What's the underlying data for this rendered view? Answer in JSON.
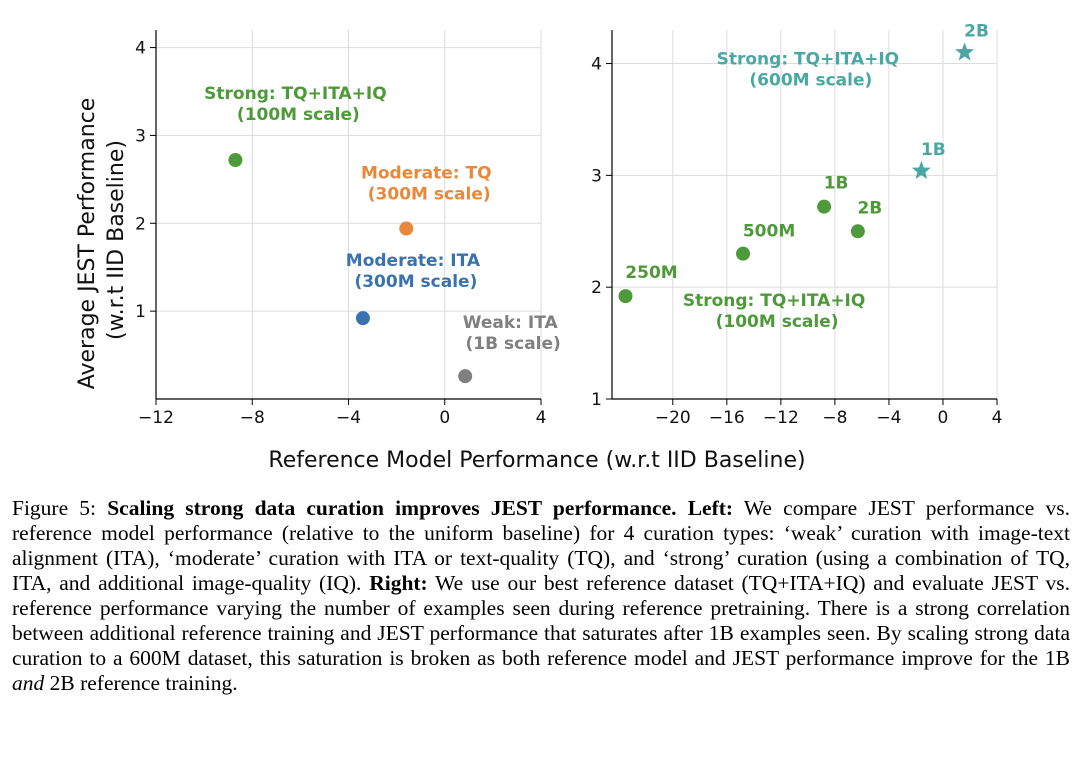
{
  "chart_data": [
    {
      "type": "scatter",
      "xlabel": "Reference Model Performance (w.r.t IID Baseline)",
      "ylabel": "Average JEST Performance\n(w.r.t IID Baseline)",
      "xlim": [
        -12,
        4
      ],
      "ylim": [
        0,
        4.2
      ],
      "xticks": [
        -12,
        -8,
        -4,
        0,
        4
      ],
      "yticks": [
        1,
        2,
        3,
        4
      ],
      "grid": true,
      "points": [
        {
          "name": "strong",
          "x": -8.7,
          "y": 2.72,
          "color": "#4e9a3a",
          "marker": "circle",
          "label": "Strong: TQ+ITA+IQ\n (100M scale)"
        },
        {
          "name": "moderate-tq",
          "x": -1.6,
          "y": 1.94,
          "color": "#e8883a",
          "marker": "circle",
          "label": "Moderate: TQ\n (300M scale)"
        },
        {
          "name": "moderate-ita",
          "x": -3.4,
          "y": 0.92,
          "color": "#3a72b0",
          "marker": "circle",
          "label": "Moderate: ITA\n (300M scale)"
        },
        {
          "name": "weak",
          "x": 0.85,
          "y": 0.26,
          "color": "#808080",
          "marker": "circle",
          "label": "Weak: ITA\n (1B scale)"
        }
      ]
    },
    {
      "type": "scatter",
      "xlim": [
        -24.5,
        4
      ],
      "ylim": [
        1,
        4.3
      ],
      "xticks": [
        -20,
        -16,
        -12,
        -8,
        -4,
        0,
        4
      ],
      "yticks": [
        1,
        2,
        3,
        4
      ],
      "grid": true,
      "series": [
        {
          "name": "Strong: TQ+ITA+IQ\n (100M scale)",
          "color": "#4e9a3a",
          "marker": "circle",
          "points": [
            {
              "label": "250M",
              "x": -23.5,
              "y": 1.92
            },
            {
              "label": "500M",
              "x": -14.8,
              "y": 2.3
            },
            {
              "label": "1B",
              "x": -8.8,
              "y": 2.72
            },
            {
              "label": "2B",
              "x": -6.3,
              "y": 2.5
            }
          ]
        },
        {
          "name": "Strong: TQ+ITA+IQ\n (600M scale)",
          "color": "#4aa8a4",
          "marker": "star",
          "points": [
            {
              "label": "1B",
              "x": -1.6,
              "y": 3.04
            },
            {
              "label": "2B",
              "x": 1.6,
              "y": 4.1
            }
          ]
        }
      ]
    }
  ],
  "caption": {
    "label": "Figure 5: ",
    "title": "Scaling strong data curation improves JEST performance.",
    "left_label": "Left:",
    "left_text": " We compare JEST performance vs. reference model performance (relative to the uniform baseline) for 4 curation types: ‘weak’ curation with image-text alignment (ITA), ‘moderate’ curation with ITA or text-quality (TQ), and ‘strong’ curation (using a combination of TQ, ITA, and additional image-quality (IQ). ",
    "right_label": "Right:",
    "right_text_1": " We use our best reference dataset (TQ+ITA+IQ) and evaluate JEST vs. reference performance varying the number of examples seen during reference pretraining. There is a strong correlation between additional reference training and JEST performance that saturates after 1B examples seen. By scaling strong data curation to a 600M dataset, this saturation is broken as both reference model and JEST performance improve for the 1B ",
    "right_emph": "and",
    "right_text_2": " 2B reference training."
  }
}
